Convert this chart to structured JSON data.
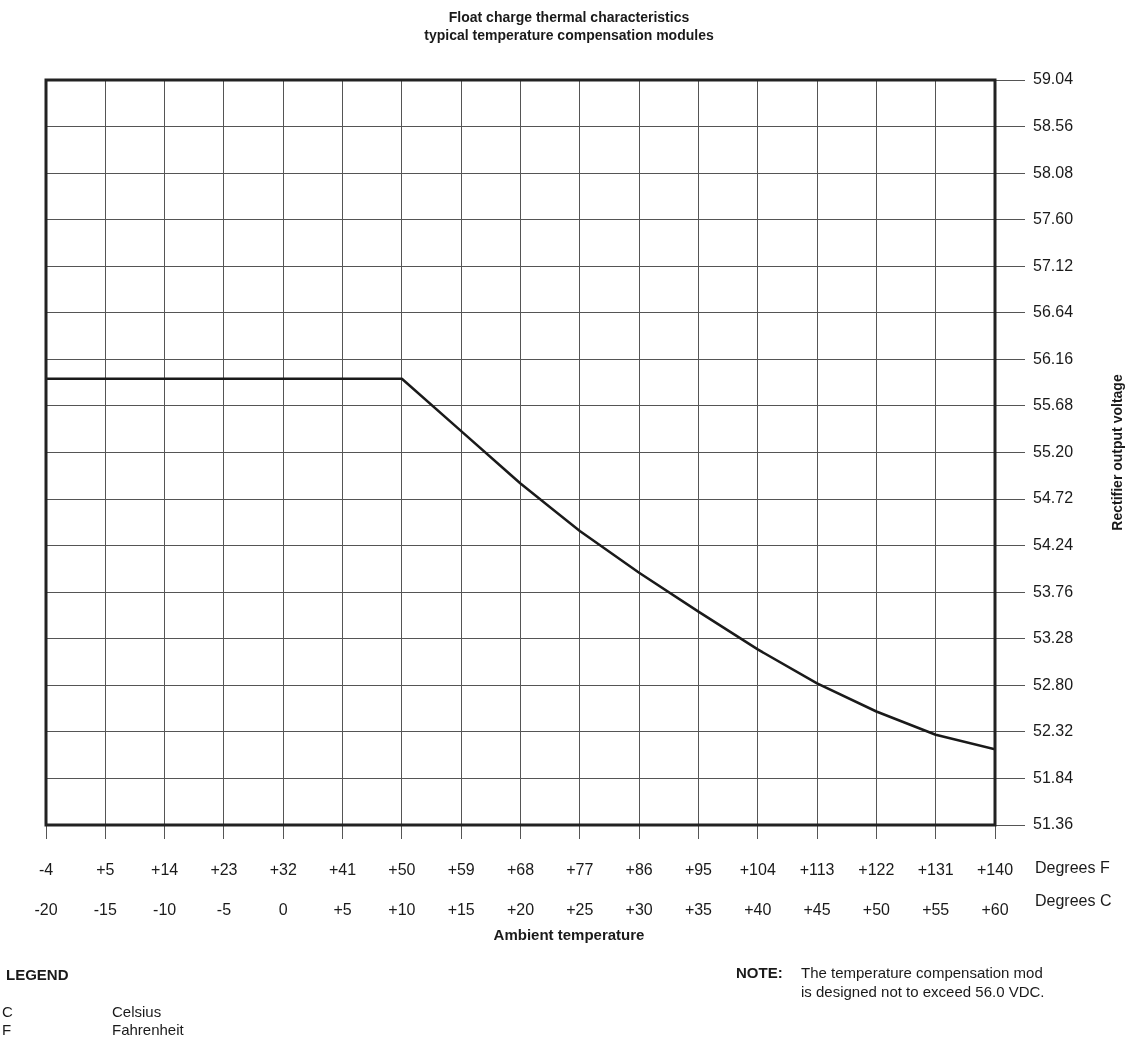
{
  "chart_data": {
    "type": "line",
    "title": "Float charge thermal characteristics",
    "subtitle": "typical temperature compensation modules",
    "xlabel": "Degrees F",
    "x2label": "Degrees C",
    "ylabel": "Rectifier output voltage",
    "annotations": [
      "Ambient temperature",
      "LEGEND",
      "C",
      "Celsius",
      "F",
      "Fahrenheit",
      "NOTE:",
      "The temperature compensation mod",
      "is designed not to exceed 56.0 VDC."
    ],
    "x": [
      -4,
      50,
      59,
      68,
      77,
      86,
      95,
      104,
      113,
      122,
      131,
      140
    ],
    "series": [
      {
        "color": "#1a1a1a",
        "values": [
          55.96,
          55.96,
          55.42,
          54.88,
          54.39,
          53.96,
          53.56,
          53.17,
          52.82,
          52.53,
          52.29,
          52.14
        ]
      }
    ],
    "xlim": [
      -4,
      140
    ],
    "xticks": [
      -4,
      {
        "value": 5,
        "label": "+5"
      },
      {
        "value": 14,
        "label": "+14"
      },
      {
        "value": 23,
        "label": "+23"
      },
      {
        "value": 32,
        "label": "+32"
      },
      {
        "value": 41,
        "label": "+41"
      },
      {
        "value": 50,
        "label": "+50"
      },
      {
        "value": 59,
        "label": "+59"
      },
      {
        "value": 68,
        "label": "+68"
      },
      {
        "value": 77,
        "label": "+77"
      },
      {
        "value": 86,
        "label": "+86"
      },
      {
        "value": 95,
        "label": "+95"
      },
      {
        "value": 104,
        "label": "+104"
      },
      {
        "value": 113,
        "label": "+113"
      },
      {
        "value": 122,
        "label": "+122"
      },
      {
        "value": 131,
        "label": "+131"
      },
      {
        "value": 140,
        "label": "+140"
      }
    ],
    "x2lim": [
      -20,
      60
    ],
    "x2ticks": [
      -20,
      -15,
      -10,
      -5,
      0,
      {
        "value": 5,
        "label": "+5"
      },
      {
        "value": 10,
        "label": "+10"
      },
      {
        "value": 15,
        "label": "+15"
      },
      {
        "value": 20,
        "label": "+20"
      },
      {
        "value": 25,
        "label": "+25"
      },
      {
        "value": 30,
        "label": "+30"
      },
      {
        "value": 35,
        "label": "+35"
      },
      {
        "value": 40,
        "label": "+40"
      },
      {
        "value": 45,
        "label": "+45"
      },
      {
        "value": 50,
        "label": "+50"
      },
      {
        "value": 55,
        "label": "+55"
      },
      {
        "value": 60,
        "label": "+60"
      }
    ],
    "ylim": [
      51.36,
      59.04
    ],
    "yticks": [
      51.36,
      51.84,
      52.32,
      {
        "value": 52.8,
        "label": "52.80"
      },
      53.28,
      53.76,
      54.24,
      54.72,
      {
        "value": 55.2,
        "label": "55.20"
      },
      55.68,
      56.16,
      56.64,
      57.12,
      {
        "value": 57.6,
        "label": "57.60"
      },
      58.08,
      58.56,
      59.04
    ],
    "grid": true,
    "marker": "none",
    "line_style": "solid",
    "legend": false
  }
}
